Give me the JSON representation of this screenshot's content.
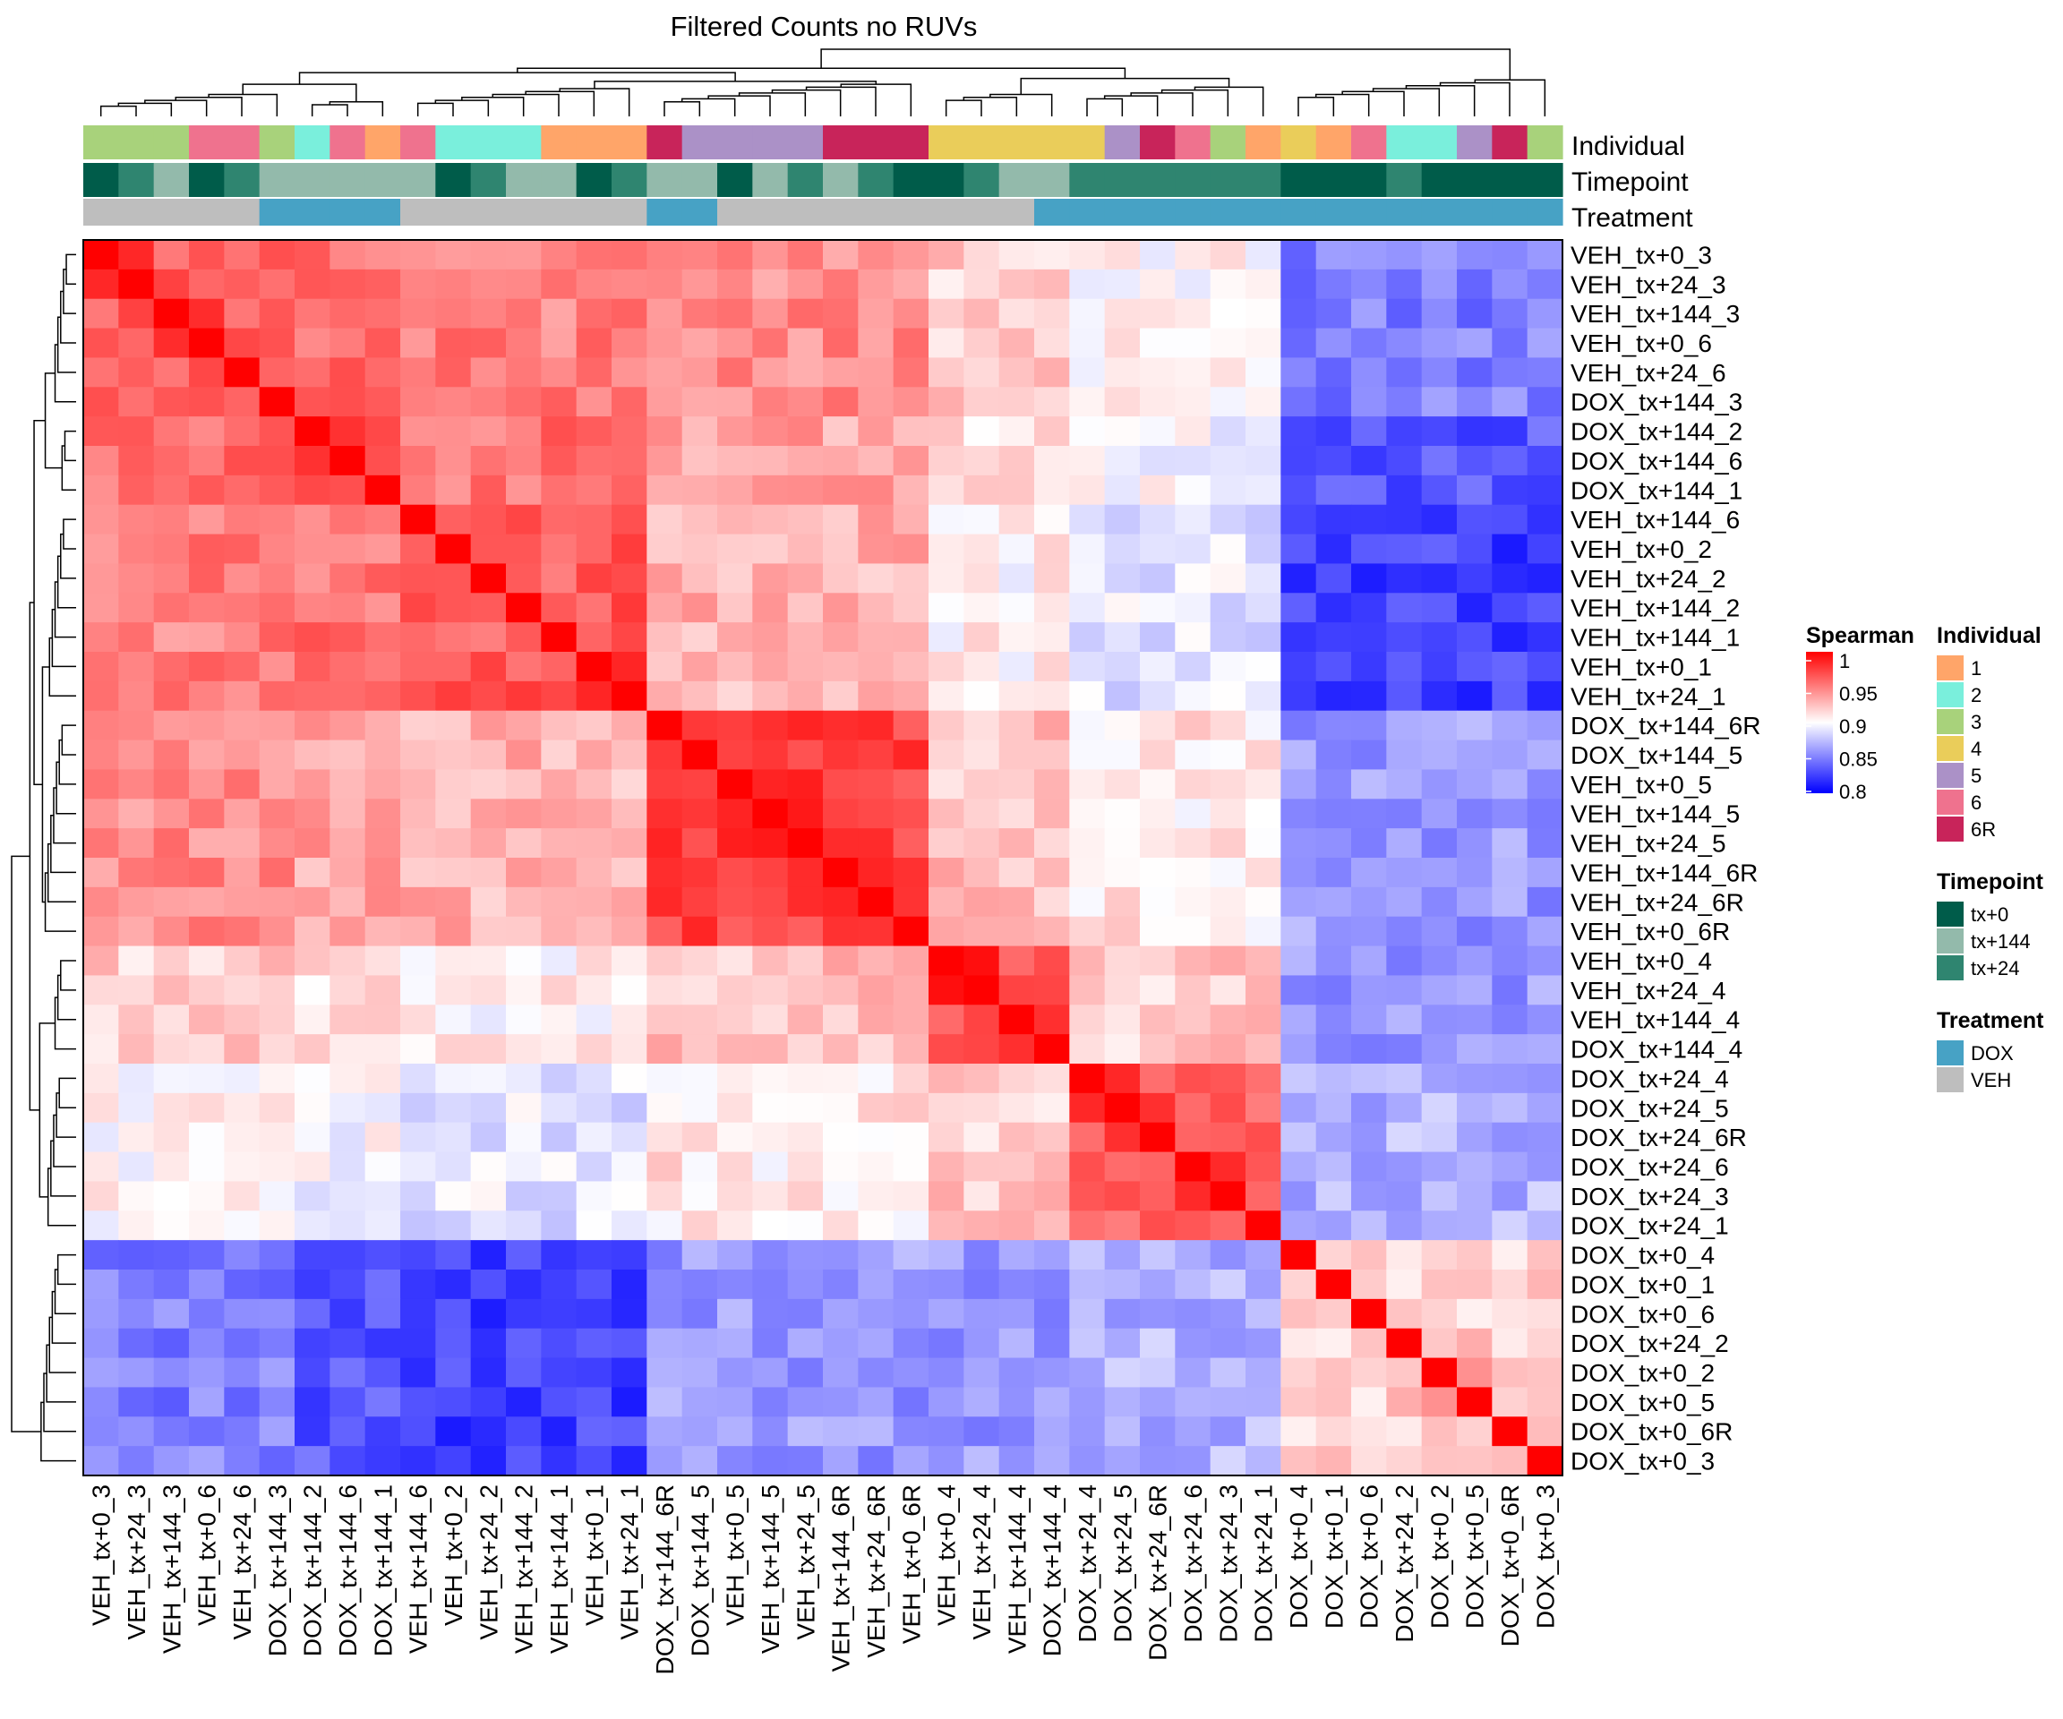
{
  "colors": {
    "individual": {
      "1": "#FFA569",
      "2": "#7AEFDC",
      "3": "#A8D27B",
      "4": "#EACD5A",
      "5": "#AB91C7",
      "6": "#EF728E",
      "6R": "#C8245A"
    },
    "timepoint": {
      "tx+0": "#005C4A",
      "tx+144": "#93BAAB",
      "tx+24": "#2F8570"
    },
    "treatment": {
      "DOX": "#47A2C5",
      "VEH": "#BEBEBE"
    },
    "scale": {
      "high": "#FF0000",
      "mid": "#FFFFFF",
      "low": "#0000FF"
    }
  },
  "chart_data": {
    "type": "heatmap",
    "title": "Filtered Counts no RUVs",
    "rows": [
      "VEH_tx+0_3",
      "VEH_tx+24_3",
      "VEH_tx+144_3",
      "VEH_tx+0_6",
      "VEH_tx+24_6",
      "DOX_tx+144_3",
      "DOX_tx+144_2",
      "DOX_tx+144_6",
      "DOX_tx+144_1",
      "VEH_tx+144_6",
      "VEH_tx+0_2",
      "VEH_tx+24_2",
      "VEH_tx+144_2",
      "VEH_tx+144_1",
      "VEH_tx+0_1",
      "VEH_tx+24_1",
      "DOX_tx+144_6R",
      "DOX_tx+144_5",
      "VEH_tx+0_5",
      "VEH_tx+144_5",
      "VEH_tx+24_5",
      "VEH_tx+144_6R",
      "VEH_tx+24_6R",
      "VEH_tx+0_6R",
      "VEH_tx+0_4",
      "VEH_tx+24_4",
      "VEH_tx+144_4",
      "DOX_tx+144_4",
      "DOX_tx+24_4",
      "DOX_tx+24_5",
      "DOX_tx+24_6R",
      "DOX_tx+24_6",
      "DOX_tx+24_3",
      "DOX_tx+24_1",
      "DOX_tx+0_4",
      "DOX_tx+0_1",
      "DOX_tx+0_6",
      "DOX_tx+24_2",
      "DOX_tx+0_2",
      "DOX_tx+0_5",
      "DOX_tx+0_6R",
      "DOX_tx+0_3"
    ],
    "columns": [
      "VEH_tx+0_3",
      "VEH_tx+24_3",
      "VEH_tx+144_3",
      "VEH_tx+0_6",
      "VEH_tx+24_6",
      "DOX_tx+144_3",
      "DOX_tx+144_2",
      "DOX_tx+144_6",
      "DOX_tx+144_1",
      "VEH_tx+144_6",
      "VEH_tx+0_2",
      "VEH_tx+24_2",
      "VEH_tx+144_2",
      "VEH_tx+144_1",
      "VEH_tx+0_1",
      "VEH_tx+24_1",
      "DOX_tx+144_6R",
      "DOX_tx+144_5",
      "VEH_tx+0_5",
      "VEH_tx+144_5",
      "VEH_tx+24_5",
      "VEH_tx+144_6R",
      "VEH_tx+24_6R",
      "VEH_tx+0_6R",
      "VEH_tx+0_4",
      "VEH_tx+24_4",
      "VEH_tx+144_4",
      "DOX_tx+144_4",
      "DOX_tx+24_4",
      "DOX_tx+24_5",
      "DOX_tx+24_6R",
      "DOX_tx+24_6",
      "DOX_tx+24_3",
      "DOX_tx+24_1",
      "DOX_tx+0_4",
      "DOX_tx+0_1",
      "DOX_tx+0_6",
      "DOX_tx+24_2",
      "DOX_tx+0_2",
      "DOX_tx+0_5",
      "DOX_tx+0_6R",
      "DOX_tx+0_3"
    ],
    "annotation_labels": [
      "Individual",
      "Timepoint",
      "Treatment"
    ],
    "blocks": {
      "sizes": [
        6,
        3,
        7,
        8,
        4,
        6,
        8
      ],
      "values": [
        [
          0.965,
          0.955,
          0.95,
          0.945,
          0.92,
          0.905,
          0.85
        ],
        [
          0.955,
          0.965,
          0.955,
          0.935,
          0.915,
          0.9,
          0.835
        ],
        [
          0.95,
          0.955,
          0.965,
          0.93,
          0.905,
          0.89,
          0.825
        ],
        [
          0.945,
          0.935,
          0.93,
          0.975,
          0.925,
          0.91,
          0.86
        ],
        [
          0.92,
          0.915,
          0.905,
          0.925,
          0.97,
          0.92,
          0.86
        ],
        [
          0.905,
          0.9,
          0.89,
          0.91,
          0.92,
          0.96,
          0.87
        ],
        [
          0.85,
          0.835,
          0.825,
          0.86,
          0.86,
          0.87,
          0.92
        ]
      ]
    },
    "color_scale": {
      "label": "Spearman",
      "min": 0.8,
      "max": 1.0,
      "ticks": [
        1,
        0.95,
        0.9,
        0.85,
        0.8
      ]
    }
  },
  "legends": {
    "scale": {
      "title": "Spearman",
      "ticks": [
        "1",
        "0.95",
        "0.9",
        "0.85",
        "0.8"
      ]
    },
    "individual": {
      "title": "Individual",
      "items": [
        "1",
        "2",
        "3",
        "4",
        "5",
        "6",
        "6R"
      ]
    },
    "timepoint": {
      "title": "Timepoint",
      "items": [
        "tx+0",
        "tx+144",
        "tx+24"
      ]
    },
    "treatment": {
      "title": "Treatment",
      "items": [
        "DOX",
        "VEH"
      ]
    }
  }
}
